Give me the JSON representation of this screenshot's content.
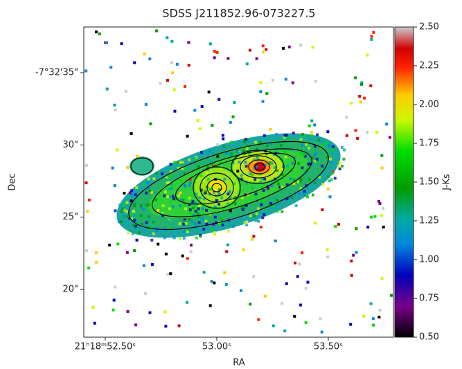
{
  "chart_data": {
    "type": "image",
    "title": "SDSS J211852.96-073227.5",
    "xlabel": "RA",
    "ylabel": "Dec",
    "colorbar_label": "J-Ks",
    "cmap": "nipy_spectral",
    "xlim": [
      52.404,
      53.792
    ],
    "xticks": [
      {
        "value": 52.5,
        "label": "21ʰ18ᵐ52.50ˢ"
      },
      {
        "value": 53.0,
        "label": "53.00ˢ"
      },
      {
        "value": 53.5,
        "label": "53.50ˢ"
      }
    ],
    "ylim": [
      16.7,
      38.16
    ],
    "yticks": [
      {
        "value": 20,
        "label": "20\""
      },
      {
        "value": 25,
        "label": "25\""
      },
      {
        "value": 30,
        "label": "30\""
      },
      {
        "value": 35,
        "label": "-7°32'35\""
      }
    ],
    "clim": [
      0.5,
      2.5
    ],
    "cticks": [
      {
        "value": 0.5,
        "label": "0.50"
      },
      {
        "value": 0.75,
        "label": "0.75"
      },
      {
        "value": 1.0,
        "label": "1.00"
      },
      {
        "value": 1.25,
        "label": "1.25"
      },
      {
        "value": 1.5,
        "label": "1.50"
      },
      {
        "value": 1.75,
        "label": "1.75"
      },
      {
        "value": 2.0,
        "label": "2.00"
      },
      {
        "value": 2.25,
        "label": "2.25"
      },
      {
        "value": 2.5,
        "label": "2.50"
      }
    ]
  }
}
